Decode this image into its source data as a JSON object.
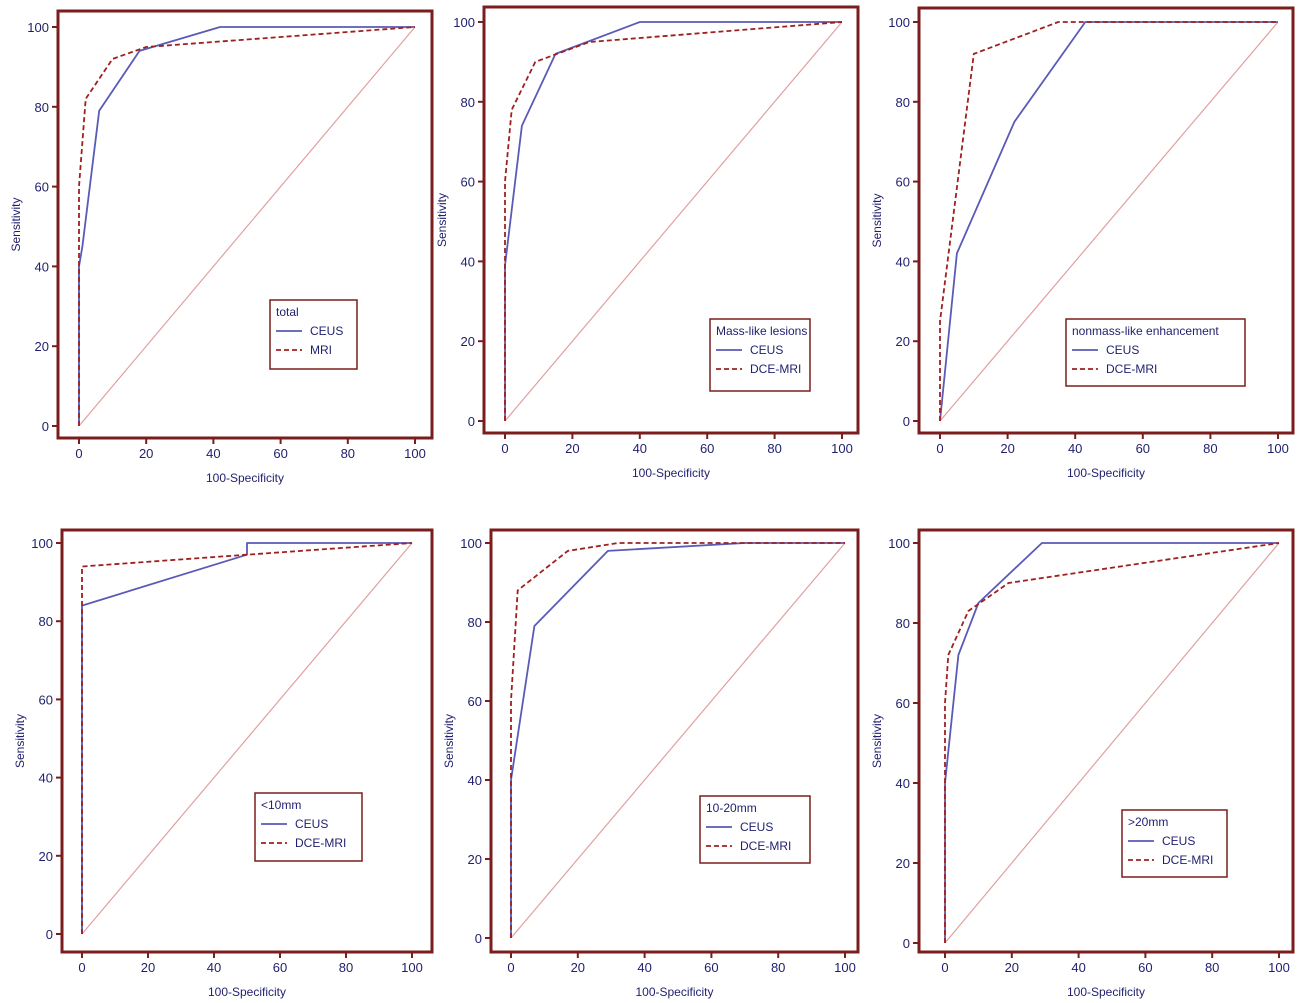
{
  "figure": {
    "axis_color": "#7b1d1d",
    "tick_label_color": "#1f1f6e",
    "diagonal_color": "#e0a0a0"
  },
  "chart_data": [
    {
      "type": "line",
      "xlabel": "100-Specificity",
      "ylabel": "Sensitivity",
      "xlim": [
        0,
        100
      ],
      "ylim": [
        0,
        100
      ],
      "x_ticks": [
        "0",
        "20",
        "40",
        "60",
        "80",
        "100"
      ],
      "y_ticks": [
        "0",
        "20",
        "40",
        "60",
        "80",
        "100"
      ],
      "grid": false,
      "legend_title": "total",
      "legend_position": "bottom-right",
      "reference_line": [
        [
          0,
          0
        ],
        [
          100,
          100
        ]
      ],
      "series": [
        {
          "name": "CEUS",
          "color": "#5a5ab8",
          "style": "solid",
          "points": [
            [
              0,
              0
            ],
            [
              0,
              40
            ],
            [
              1,
              45
            ],
            [
              6,
              79
            ],
            [
              18,
              94
            ],
            [
              42,
              100
            ],
            [
              100,
              100
            ]
          ]
        },
        {
          "name": "MRI",
          "color": "#a02020",
          "style": "dashed",
          "points": [
            [
              0,
              0
            ],
            [
              0,
              60
            ],
            [
              2,
              82
            ],
            [
              10,
              92
            ],
            [
              20,
              95
            ],
            [
              100,
              100
            ]
          ]
        }
      ]
    },
    {
      "type": "line",
      "xlabel": "100-Specificity",
      "ylabel": "Sensitivity",
      "xlim": [
        0,
        100
      ],
      "ylim": [
        0,
        100
      ],
      "x_ticks": [
        "0",
        "20",
        "40",
        "60",
        "80",
        "100"
      ],
      "y_ticks": [
        "0",
        "20",
        "40",
        "60",
        "80",
        "100"
      ],
      "grid": false,
      "legend_title": "Mass-like lesions",
      "legend_position": "bottom-right",
      "reference_line": [
        [
          0,
          0
        ],
        [
          100,
          100
        ]
      ],
      "series": [
        {
          "name": "CEUS",
          "color": "#5a5ab8",
          "style": "solid",
          "points": [
            [
              0,
              0
            ],
            [
              0,
              39
            ],
            [
              5,
              74
            ],
            [
              15,
              92
            ],
            [
              40,
              100
            ],
            [
              100,
              100
            ]
          ]
        },
        {
          "name": "DCE-MRI",
          "color": "#a02020",
          "style": "dashed",
          "points": [
            [
              0,
              0
            ],
            [
              0,
              60
            ],
            [
              2,
              78
            ],
            [
              9,
              90
            ],
            [
              25,
              95
            ],
            [
              100,
              100
            ]
          ]
        }
      ]
    },
    {
      "type": "line",
      "xlabel": "100-Specificity",
      "ylabel": "Sensitivity",
      "xlim": [
        0,
        100
      ],
      "ylim": [
        0,
        100
      ],
      "x_ticks": [
        "0",
        "20",
        "40",
        "60",
        "80",
        "100"
      ],
      "y_ticks": [
        "0",
        "20",
        "40",
        "60",
        "80",
        "100"
      ],
      "grid": false,
      "legend_title": "nonmass-like enhancement",
      "legend_position": "bottom-right",
      "reference_line": [
        [
          0,
          0
        ],
        [
          100,
          100
        ]
      ],
      "series": [
        {
          "name": "CEUS",
          "color": "#5a5ab8",
          "style": "solid",
          "points": [
            [
              0,
              0
            ],
            [
              5,
              42
            ],
            [
              22,
              75
            ],
            [
              43,
              100
            ],
            [
              100,
              100
            ]
          ]
        },
        {
          "name": "DCE-MRI",
          "color": "#a02020",
          "style": "dashed",
          "points": [
            [
              0,
              0
            ],
            [
              0,
              25
            ],
            [
              10,
              92
            ],
            [
              35,
              100
            ],
            [
              100,
              100
            ]
          ]
        }
      ]
    },
    {
      "type": "line",
      "xlabel": "100-Specificity",
      "ylabel": "Sensitivity",
      "xlim": [
        0,
        100
      ],
      "ylim": [
        0,
        100
      ],
      "x_ticks": [
        "0",
        "20",
        "40",
        "60",
        "80",
        "100"
      ],
      "y_ticks": [
        "0",
        "20",
        "40",
        "60",
        "80",
        "100"
      ],
      "grid": false,
      "legend_title": "<10mm",
      "legend_position": "bottom-right",
      "reference_line": [
        [
          0,
          0
        ],
        [
          100,
          100
        ]
      ],
      "series": [
        {
          "name": "CEUS",
          "color": "#5a5ab8",
          "style": "solid",
          "points": [
            [
              0,
              0
            ],
            [
              0,
              84
            ],
            [
              50,
              97
            ],
            [
              50,
              100
            ],
            [
              100,
              100
            ]
          ]
        },
        {
          "name": "DCE-MRI",
          "color": "#a02020",
          "style": "dashed",
          "points": [
            [
              0,
              0
            ],
            [
              0,
              94
            ],
            [
              50,
              97
            ],
            [
              100,
              100
            ]
          ]
        }
      ]
    },
    {
      "type": "line",
      "xlabel": "100-Specificity",
      "ylabel": "Sensitivity",
      "xlim": [
        0,
        100
      ],
      "ylim": [
        0,
        100
      ],
      "x_ticks": [
        "0",
        "20",
        "40",
        "60",
        "80",
        "100"
      ],
      "y_ticks": [
        "0",
        "20",
        "40",
        "60",
        "80",
        "100"
      ],
      "grid": false,
      "legend_title": "10-20mm",
      "legend_position": "bottom-right",
      "reference_line": [
        [
          0,
          0
        ],
        [
          100,
          100
        ]
      ],
      "series": [
        {
          "name": "CEUS",
          "color": "#5a5ab8",
          "style": "solid",
          "points": [
            [
              0,
              0
            ],
            [
              0,
              40
            ],
            [
              7,
              79
            ],
            [
              29,
              98
            ],
            [
              70,
              100
            ],
            [
              100,
              100
            ]
          ]
        },
        {
          "name": "DCE-MRI",
          "color": "#a02020",
          "style": "dashed",
          "points": [
            [
              0,
              0
            ],
            [
              0,
              60
            ],
            [
              2,
              88
            ],
            [
              17,
              98
            ],
            [
              32,
              100
            ],
            [
              100,
              100
            ]
          ]
        }
      ]
    },
    {
      "type": "line",
      "xlabel": "100-Specificity",
      "ylabel": "Sensitivity",
      "xlim": [
        0,
        100
      ],
      "ylim": [
        0,
        100
      ],
      "x_ticks": [
        "0",
        "20",
        "40",
        "60",
        "80",
        "100"
      ],
      "y_ticks": [
        "0",
        "20",
        "40",
        "60",
        "80",
        "100"
      ],
      "grid": false,
      "legend_title": ">20mm",
      "legend_position": "bottom-right",
      "reference_line": [
        [
          0,
          0
        ],
        [
          100,
          100
        ]
      ],
      "series": [
        {
          "name": "CEUS",
          "color": "#5a5ab8",
          "style": "solid",
          "points": [
            [
              0,
              0
            ],
            [
              0,
              40
            ],
            [
              4,
              72
            ],
            [
              10,
              85
            ],
            [
              29,
              100
            ],
            [
              100,
              100
            ]
          ]
        },
        {
          "name": "DCE-MRI",
          "color": "#a02020",
          "style": "dashed",
          "points": [
            [
              0,
              0
            ],
            [
              0,
              60
            ],
            [
              1,
              72
            ],
            [
              7,
              83
            ],
            [
              19,
              90
            ],
            [
              100,
              100
            ]
          ]
        }
      ]
    }
  ]
}
